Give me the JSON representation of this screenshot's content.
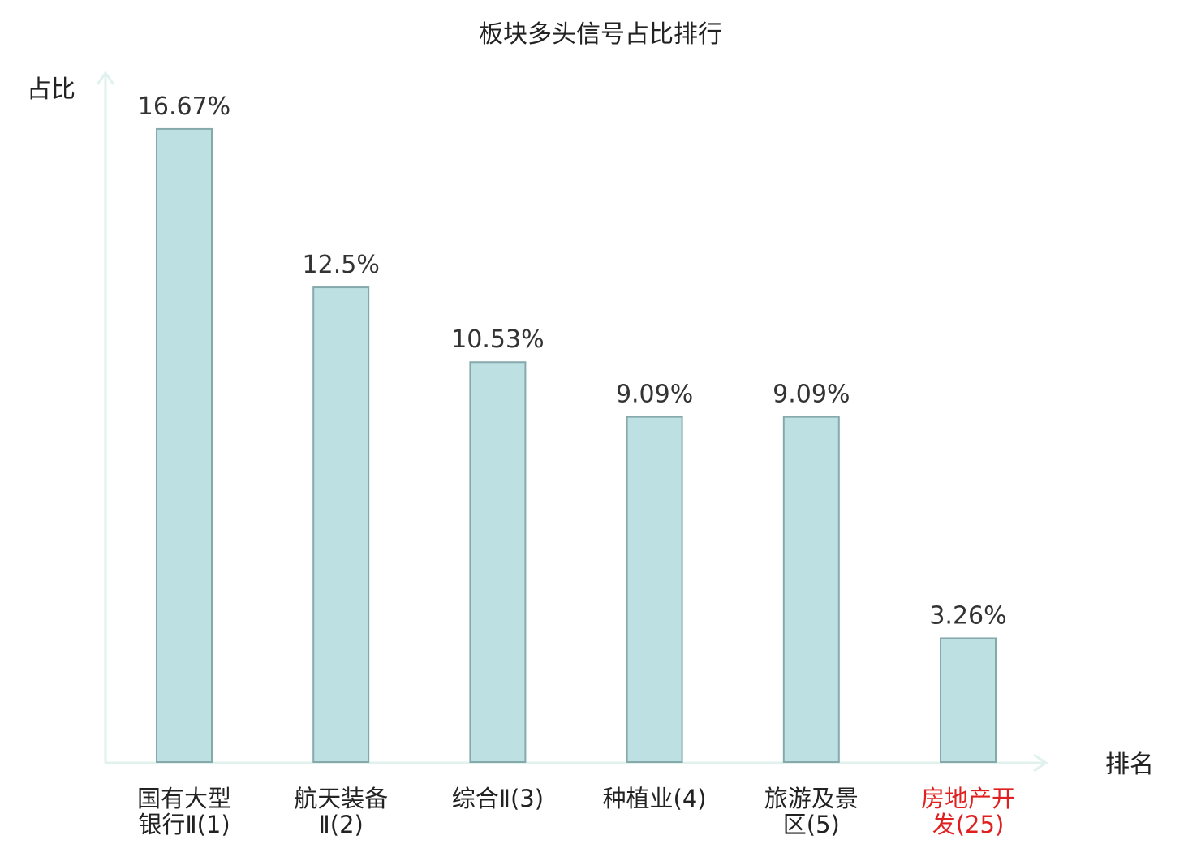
{
  "chart_data": {
    "type": "bar",
    "title": "板块多头信号占比排行",
    "ylabel": "占比",
    "xlabel": "排名",
    "ylim": [
      0,
      18.1
    ],
    "grid": false,
    "categories": [
      {
        "lines": [
          "国有大型",
          "银行Ⅱ(1)"
        ],
        "highlight": false
      },
      {
        "lines": [
          "航天装备",
          "Ⅱ(2)"
        ],
        "highlight": false
      },
      {
        "lines": [
          "综合Ⅱ(3)"
        ],
        "highlight": false
      },
      {
        "lines": [
          "种植业(4)"
        ],
        "highlight": false
      },
      {
        "lines": [
          "旅游及景",
          "区(5)"
        ],
        "highlight": false
      },
      {
        "lines": [
          "房地产开",
          "发(25)"
        ],
        "highlight": true
      }
    ],
    "values": [
      16.67,
      12.5,
      10.53,
      9.09,
      9.09,
      3.26
    ],
    "value_labels": [
      "16.67%",
      "12.5%",
      "10.53%",
      "9.09%",
      "9.09%",
      "3.26%"
    ],
    "colors": {
      "bar_fill": "#bde0e3",
      "bar_stroke": "#86a9ac",
      "axis": "#e0f1ee",
      "text": "#333333",
      "highlight_text": "#e02020"
    }
  }
}
